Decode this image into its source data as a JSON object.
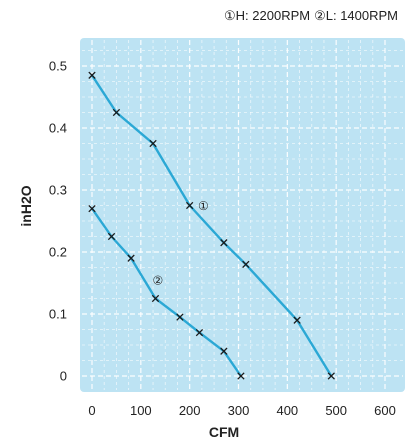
{
  "chart_data": {
    "type": "line",
    "title": "",
    "legend": {
      "placement": "top-right",
      "entries": [
        {
          "symbol": "①",
          "text": "H: 2200RPM"
        },
        {
          "symbol": "②",
          "text": "L: 1400RPM"
        }
      ]
    },
    "xlabel": "CFM",
    "ylabel": "inH2O",
    "xlim": [
      0,
      600
    ],
    "ylim": [
      0,
      0.5
    ],
    "xticks": [
      0,
      100,
      200,
      300,
      400,
      500,
      600
    ],
    "xtick_labels": [
      "0",
      "100",
      "200",
      "300",
      "400",
      "500",
      "600"
    ],
    "yticks": [
      0,
      0.1,
      0.2,
      0.3,
      0.4,
      0.5
    ],
    "ytick_labels": [
      "0",
      "0.1",
      "0.2",
      "0.3",
      "0.4",
      "0.5"
    ],
    "grid": true,
    "series": [
      {
        "name": "①",
        "label_anchor": {
          "x": 228,
          "y": 0.275
        },
        "x": [
          0,
          50,
          125,
          200,
          270,
          315,
          420,
          490
        ],
        "y": [
          0.485,
          0.425,
          0.375,
          0.275,
          0.215,
          0.18,
          0.09,
          0.0
        ]
      },
      {
        "name": "②",
        "label_anchor": {
          "x": 135,
          "y": 0.155
        },
        "x": [
          0,
          40,
          80,
          130,
          180,
          220,
          270,
          305
        ],
        "y": [
          0.27,
          0.225,
          0.19,
          0.125,
          0.095,
          0.07,
          0.04,
          0.0
        ]
      }
    ],
    "colors": {
      "plot_background": "#bde3f3",
      "line": "#2ba8d5",
      "marker": "#1a1a1a",
      "grid": "#ffffff"
    }
  }
}
